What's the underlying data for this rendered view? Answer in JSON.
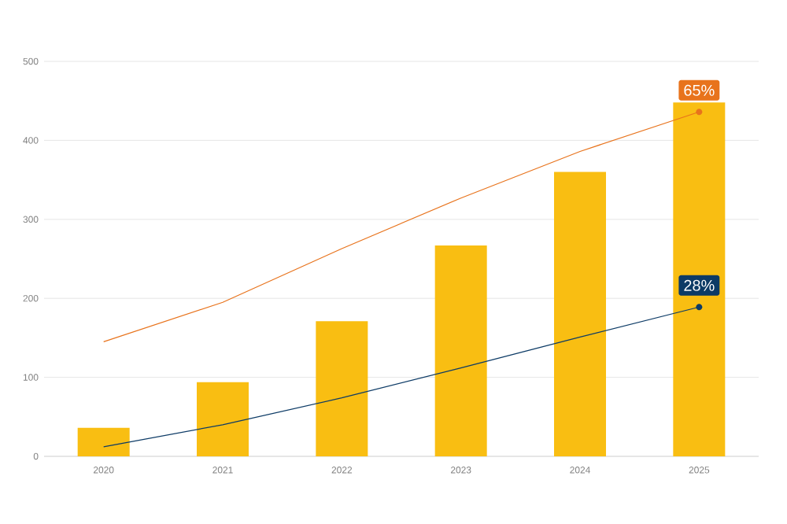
{
  "chart_data": {
    "type": "bar",
    "categories": [
      "2020",
      "2021",
      "2022",
      "2023",
      "2024",
      "2025"
    ],
    "series": [
      {
        "color": "#f9be12",
        "values": [
          36,
          94,
          171,
          267,
          360,
          448
        ]
      },
      {
        "type": "line",
        "color": "#0d3b66",
        "values": [
          12,
          40,
          74,
          112,
          151,
          189
        ]
      },
      {
        "type": "line",
        "color": "#e8731c",
        "values": [
          145,
          195,
          263,
          327,
          386,
          436
        ]
      }
    ],
    "ylim": [
      0,
      500
    ],
    "yticks": [
      0,
      100,
      200,
      300,
      400,
      500
    ],
    "grid": "y",
    "annotations": [
      {
        "text": "65%",
        "x": "2025",
        "y": 436
      },
      {
        "text": "28%",
        "x": "2025",
        "y": 189
      }
    ]
  }
}
